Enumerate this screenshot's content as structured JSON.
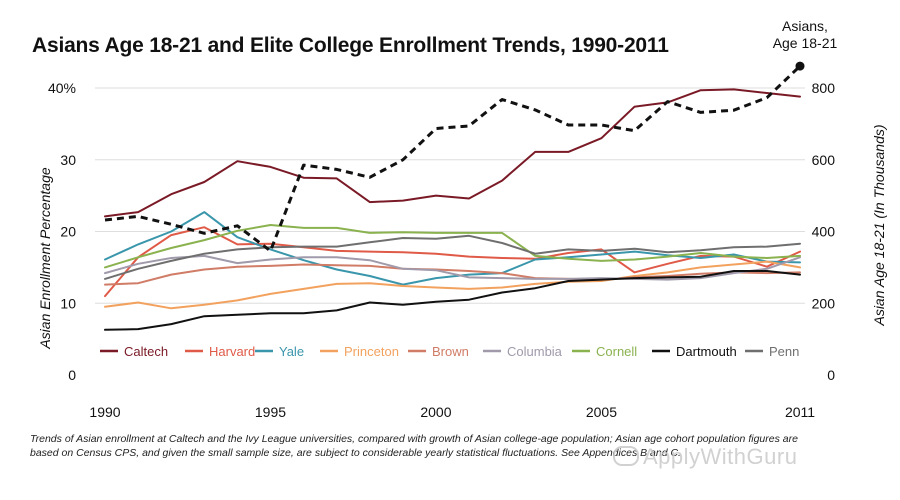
{
  "title": "Asians Age 18-21 and Elite College Enrollment Trends, 1990-2011",
  "caption": {
    "line1": "Trends of Asian enrollment at Caltech and the Ivy League universities, compared with growth of Asian college-age population; Asian age cohort population figures are",
    "line2": "based on Census CPS, and given the small sample size, are subject to considerable yearly statistical fluctuations. See Appendices B and C."
  },
  "watermark": "ApplyWithGuru",
  "chart_data": {
    "type": "line",
    "title": "Asians Age 18-21 and Elite College Enrollment Trends, 1990-2011",
    "x": [
      1990,
      1991,
      1992,
      1993,
      1994,
      1995,
      1996,
      1997,
      1998,
      1999,
      2000,
      2001,
      2002,
      2003,
      2004,
      2005,
      2006,
      2007,
      2008,
      2009,
      2010,
      2011
    ],
    "xticks": [
      "1990",
      "1995",
      "2000",
      "2005",
      "2011"
    ],
    "xtick_values": [
      1990,
      1995,
      2000,
      2005,
      2011
    ],
    "xlim": [
      1990,
      2011
    ],
    "ylabel": "Asian Enrollment Percentage",
    "ylim": [
      0,
      40
    ],
    "yticks": [
      "0",
      "10",
      "20",
      "30",
      "40%"
    ],
    "ytick_values": [
      0,
      10,
      20,
      30,
      40
    ],
    "y2label": "Asian Age 18-21 (In Thousands)",
    "y2lim": [
      0,
      800
    ],
    "y2ticks": [
      "0",
      "200",
      "400",
      "600",
      "800"
    ],
    "y2tick_values": [
      0,
      200,
      400,
      600,
      800
    ],
    "grid": true,
    "legend_position": "bottom",
    "series": [
      {
        "name": "Caltech",
        "color": "#7a1a26",
        "values": [
          22.1,
          22.7,
          25.2,
          26.9,
          29.8,
          29.0,
          27.5,
          27.4,
          24.1,
          24.3,
          25.0,
          24.6,
          27.1,
          31.1,
          31.1,
          33.0,
          37.4,
          38.0,
          39.7,
          39.8,
          39.3,
          38.8
        ]
      },
      {
        "name": "Harvard",
        "color": "#e05a48",
        "values": [
          11.0,
          16.4,
          19.5,
          20.6,
          18.2,
          18.3,
          17.8,
          17.3,
          17.2,
          17.1,
          16.9,
          16.5,
          16.3,
          16.2,
          17.0,
          17.5,
          14.3,
          15.5,
          16.6,
          16.5,
          15.1,
          17.2
        ]
      },
      {
        "name": "Yale",
        "color": "#3a96ab",
        "values": [
          16.1,
          18.2,
          20.0,
          22.7,
          19.2,
          17.5,
          16.0,
          14.7,
          13.8,
          12.6,
          13.5,
          14.0,
          14.2,
          16.1,
          16.4,
          16.8,
          17.2,
          16.7,
          16.3,
          16.8,
          15.8,
          15.7
        ]
      },
      {
        "name": "Princeton",
        "color": "#f2a25e",
        "values": [
          9.5,
          10.1,
          9.3,
          9.8,
          10.4,
          11.3,
          12.0,
          12.7,
          12.8,
          12.4,
          12.2,
          12.0,
          12.2,
          12.7,
          13.0,
          13.1,
          13.8,
          14.3,
          15.0,
          15.4,
          15.8,
          15.0
        ]
      },
      {
        "name": "Brown",
        "color": "#d07c66",
        "values": [
          12.6,
          12.8,
          14.0,
          14.7,
          15.1,
          15.2,
          15.4,
          15.3,
          15.2,
          14.8,
          14.7,
          14.5,
          14.2,
          13.5,
          13.4,
          13.3,
          13.6,
          13.8,
          14.1,
          14.3,
          14.2,
          14.3
        ]
      },
      {
        "name": "Columbia",
        "color": "#a09aab",
        "values": [
          14.2,
          15.5,
          16.3,
          16.6,
          15.6,
          16.1,
          16.4,
          16.4,
          16.0,
          14.8,
          14.6,
          13.6,
          13.5,
          13.4,
          13.4,
          13.5,
          13.4,
          13.3,
          13.5,
          14.2,
          14.8,
          16.4
        ]
      },
      {
        "name": "Cornell",
        "color": "#8ab24e",
        "values": [
          15.0,
          16.4,
          17.7,
          18.8,
          20.1,
          20.9,
          20.5,
          20.5,
          19.8,
          19.9,
          19.8,
          19.8,
          19.8,
          16.6,
          16.2,
          15.9,
          16.1,
          16.5,
          17.0,
          16.5,
          16.3,
          16.6
        ]
      },
      {
        "name": "Dartmouth",
        "color": "#111111",
        "values": [
          6.3,
          6.4,
          7.1,
          8.2,
          8.4,
          8.6,
          8.6,
          9.0,
          10.1,
          9.8,
          10.2,
          10.5,
          11.5,
          12.1,
          13.1,
          13.3,
          13.5,
          13.6,
          13.7,
          14.5,
          14.5,
          14.0
        ]
      },
      {
        "name": "Penn",
        "color": "#6f6f6f",
        "values": [
          13.4,
          14.8,
          15.9,
          16.9,
          17.5,
          17.8,
          17.9,
          17.9,
          18.5,
          19.1,
          19.0,
          19.4,
          18.4,
          16.9,
          17.5,
          17.3,
          17.6,
          17.1,
          17.4,
          17.8,
          17.9,
          18.3
        ]
      }
    ],
    "secondary_series": {
      "name": "Asians, Age 18-21",
      "label": [
        "Asians,",
        "Age 18-21"
      ],
      "color": "#111111",
      "axis": "right",
      "style": "dashed",
      "values": [
        432,
        442,
        420,
        395,
        416,
        346,
        585,
        573,
        551,
        600,
        687,
        694,
        768,
        739,
        697,
        697,
        681,
        762,
        732,
        738,
        773,
        861
      ]
    }
  }
}
